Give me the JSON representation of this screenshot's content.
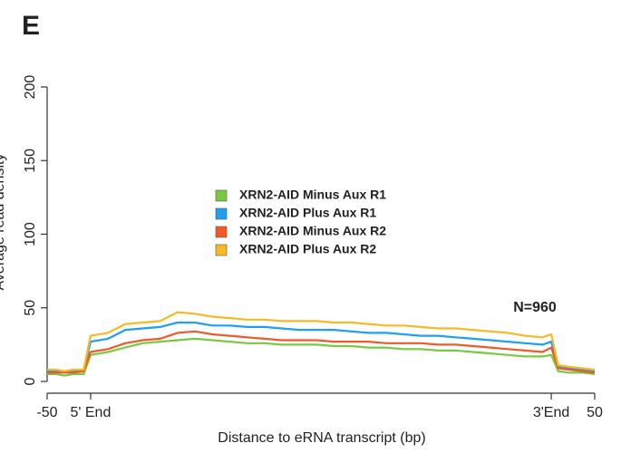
{
  "panel_label": "E",
  "chart_data": {
    "type": "line",
    "x_label": "Distance to eRNA transcript (bp)",
    "y_label": "Average read density",
    "annotation": "N=960",
    "legend": "center",
    "x": [
      -50,
      -40,
      -30,
      -20,
      -8,
      0,
      20,
      40,
      60,
      80,
      100,
      120,
      140,
      160,
      180,
      200,
      220,
      240,
      260,
      280,
      300,
      320,
      340,
      360,
      380,
      400,
      420,
      440,
      460,
      480,
      500,
      520,
      530,
      538,
      550,
      565,
      580
    ],
    "xlim": [
      -50,
      580
    ],
    "xticks": [
      -50,
      {
        "value": 0,
        "label": "5' End"
      },
      {
        "value": 530,
        "label": "3'End"
      },
      {
        "value": 580,
        "label": "50"
      }
    ],
    "ylim": [
      -8,
      216
    ],
    "yticks": [
      0,
      50,
      100,
      150,
      200
    ],
    "series": [
      {
        "name": "XRN2-AID Minus Aux R1",
        "color": "#7ac943",
        "values": [
          5,
          5,
          4,
          5,
          5,
          18,
          20,
          23,
          26,
          27,
          28,
          29,
          28,
          27,
          26,
          26,
          25,
          25,
          25,
          24,
          24,
          23,
          23,
          22,
          22,
          21,
          21,
          20,
          19,
          18,
          17,
          17,
          18,
          7,
          6,
          6,
          5
        ]
      },
      {
        "name": "XRN2-AID Plus Aux R1",
        "color": "#1e9ff2",
        "values": [
          7,
          7,
          6,
          7,
          7,
          27,
          29,
          35,
          36,
          37,
          40,
          40,
          38,
          38,
          37,
          37,
          36,
          35,
          35,
          35,
          34,
          33,
          33,
          32,
          31,
          31,
          30,
          29,
          28,
          27,
          26,
          25,
          27,
          10,
          9,
          8,
          7
        ]
      },
      {
        "name": "XRN2-AID Minus Aux R2",
        "color": "#f05a28",
        "values": [
          6,
          6,
          6,
          6,
          7,
          20,
          22,
          26,
          28,
          29,
          33,
          34,
          32,
          31,
          30,
          29,
          28,
          28,
          28,
          27,
          27,
          27,
          26,
          26,
          26,
          25,
          25,
          24,
          23,
          22,
          21,
          20,
          23,
          9,
          8,
          7,
          6
        ]
      },
      {
        "name": "XRN2-AID Plus Aux R2",
        "color": "#f7b924",
        "values": [
          8,
          8,
          7,
          8,
          8,
          31,
          33,
          39,
          40,
          41,
          47,
          46,
          44,
          43,
          42,
          42,
          41,
          41,
          41,
          40,
          40,
          39,
          38,
          38,
          37,
          36,
          36,
          35,
          34,
          33,
          31,
          30,
          32,
          11,
          10,
          9,
          8
        ]
      }
    ]
  }
}
